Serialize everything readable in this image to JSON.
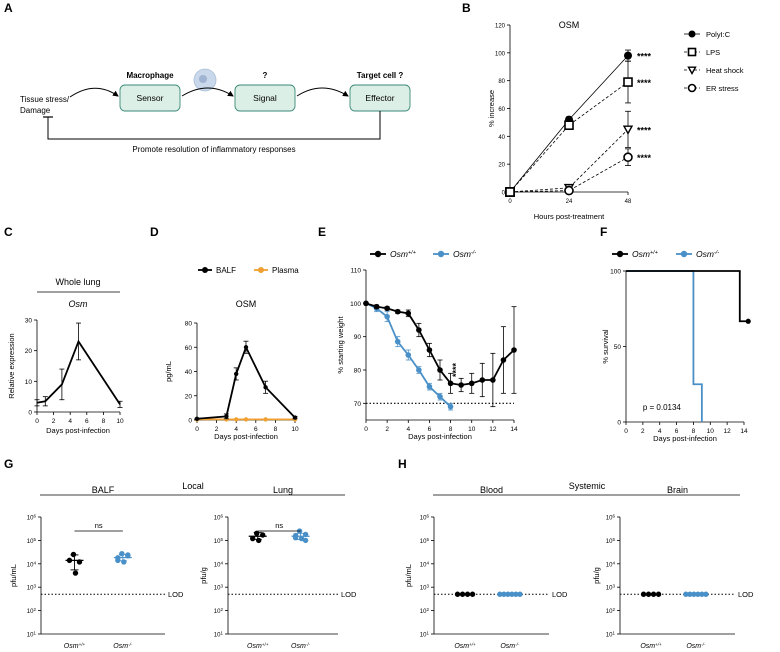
{
  "panels": {
    "A": {
      "letter": "A",
      "left_label": "Tissue stress/\nDamage",
      "boxes": [
        "Sensor",
        "Signal",
        "Effector"
      ],
      "headers": [
        "Macrophage",
        "?",
        "Target cell ?"
      ],
      "feedback": "Promote resolution of inflammatory responses",
      "colors": {
        "box_fill": "#dcefe6",
        "box_stroke": "#3b8a78",
        "cell_fill": "#c9d8ea"
      }
    },
    "B": {
      "letter": "B"
    },
    "C": {
      "letter": "C",
      "header": "Whole lung"
    },
    "D": {
      "letter": "D"
    },
    "E": {
      "letter": "E"
    },
    "F": {
      "letter": "F"
    },
    "G": {
      "letter": "G",
      "group": "Local"
    },
    "H": {
      "letter": "H",
      "group": "Systemic"
    }
  },
  "colors": {
    "wt": "#000000",
    "ko": "#4a90c8",
    "plasma": "#f0a030"
  },
  "chart_data": [
    {
      "id": "B",
      "type": "line",
      "title": "OSM",
      "xlabel": "Hours post-treatment",
      "ylabel": "% increase",
      "x": [
        0,
        24,
        48
      ],
      "xlim": [
        0,
        48
      ],
      "ylim": [
        0,
        120
      ],
      "xticks": [
        0,
        24,
        48
      ],
      "yticks": [
        0,
        20,
        40,
        60,
        80,
        100,
        120
      ],
      "series": [
        {
          "name": "PolyI:C",
          "values": [
            0,
            52,
            98
          ],
          "err": [
            0,
            2,
            4
          ],
          "marker": "circle-filled",
          "dash": ""
        },
        {
          "name": "LPS",
          "values": [
            0,
            48,
            79
          ],
          "err": [
            0,
            2,
            15
          ],
          "marker": "square-open",
          "dash": "3,2"
        },
        {
          "name": "Heat shock",
          "values": [
            0,
            3,
            45
          ],
          "err": [
            0,
            2,
            13
          ],
          "marker": "triangle-open",
          "dash": "3,2"
        },
        {
          "name": "ER stress",
          "values": [
            0,
            1,
            25
          ],
          "err": [
            0,
            1,
            6
          ],
          "marker": "circle-open",
          "dash": "3,2"
        }
      ],
      "annotations": [
        "****",
        "****",
        "****",
        "****"
      ]
    },
    {
      "id": "C",
      "type": "line",
      "title": "Osm",
      "xlabel": "Days post-infection",
      "ylabel": "Relative expression",
      "xlim": [
        0,
        10
      ],
      "ylim": [
        0,
        30
      ],
      "xticks": [
        0,
        2,
        4,
        6,
        8,
        10
      ],
      "yticks": [
        0,
        10,
        20,
        30
      ],
      "series": [
        {
          "name": "Osm",
          "x": [
            0,
            1,
            3,
            5,
            10
          ],
          "values": [
            3,
            3.5,
            9,
            23,
            2.5
          ],
          "err": [
            1,
            1.5,
            5,
            6,
            1
          ]
        }
      ]
    },
    {
      "id": "D",
      "type": "line",
      "title": "OSM",
      "xlabel": "Days post-infection",
      "ylabel": "pg/mL",
      "xlim": [
        0,
        10
      ],
      "ylim": [
        0,
        80
      ],
      "xticks": [
        0,
        2,
        4,
        6,
        8,
        10
      ],
      "yticks": [
        0,
        20,
        40,
        60,
        80
      ],
      "series": [
        {
          "name": "BALF",
          "x": [
            0,
            3,
            4,
            5,
            7,
            10
          ],
          "values": [
            1,
            3,
            38,
            60,
            27,
            2
          ],
          "err": [
            0.5,
            2,
            5,
            5,
            5,
            1
          ]
        },
        {
          "name": "Plasma",
          "x": [
            0,
            3,
            4,
            5,
            7,
            10
          ],
          "values": [
            0.5,
            0.5,
            0.5,
            0.5,
            0.5,
            0.5
          ],
          "err": [
            0,
            0,
            0,
            0,
            0,
            0
          ]
        }
      ]
    },
    {
      "id": "E",
      "type": "line",
      "xlabel": "Days post-infection",
      "ylabel": "% starting weight",
      "xlim": [
        0,
        14
      ],
      "ylim": [
        65,
        110
      ],
      "xticks": [
        0,
        2,
        4,
        6,
        8,
        10,
        12,
        14
      ],
      "yticks": [
        70,
        80,
        90,
        100,
        110
      ],
      "dotted_line_y": 70,
      "annotation": "****",
      "annotation_x": 8.5,
      "series": [
        {
          "name": "Osm",
          "sup": "+/+",
          "x": [
            0,
            1,
            2,
            3,
            4,
            5,
            6,
            7,
            8,
            9,
            10,
            11,
            12,
            13,
            14
          ],
          "values": [
            100,
            99,
            98.5,
            97.5,
            97,
            92,
            86,
            80,
            76,
            75.5,
            76,
            77,
            77,
            83,
            86
          ],
          "err": [
            0,
            0.5,
            0.5,
            0.5,
            1,
            2,
            2,
            3,
            3,
            2,
            3,
            5,
            8,
            10,
            13
          ]
        },
        {
          "name": "Osm",
          "sup": "-/-",
          "x": [
            0,
            1,
            2,
            3,
            4,
            5,
            6,
            7,
            8
          ],
          "values": [
            100,
            98.5,
            96,
            88.5,
            84.5,
            80,
            75,
            72,
            69
          ],
          "err": [
            0,
            1,
            1.5,
            1.5,
            1.5,
            1,
            1,
            1,
            1
          ]
        }
      ]
    },
    {
      "id": "F",
      "type": "line",
      "xlabel": "Days post-infection",
      "ylabel": "% survival",
      "xlim": [
        0,
        14
      ],
      "ylim": [
        0,
        100
      ],
      "xticks": [
        0,
        2,
        4,
        6,
        8,
        10,
        12,
        14
      ],
      "yticks": [
        0,
        50,
        100
      ],
      "pvalue": "p = 0.0134",
      "series": [
        {
          "name": "Osm",
          "sup": "+/+",
          "steps": [
            [
              0,
              100
            ],
            [
              13.5,
              100
            ],
            [
              13.5,
              66.7
            ],
            [
              14.5,
              66.7
            ]
          ],
          "end_dot": [
            14.5,
            66.7
          ]
        },
        {
          "name": "Osm",
          "sup": "-/-",
          "steps": [
            [
              0,
              100
            ],
            [
              8,
              100
            ],
            [
              8,
              25
            ],
            [
              9,
              25
            ],
            [
              9,
              0
            ]
          ]
        }
      ]
    },
    {
      "id": "G1",
      "type": "scatter",
      "title": "BALF",
      "ylabel": "pfu/mL",
      "lod": "LOD",
      "lod_value": 500,
      "ylim_log": [
        1,
        6
      ],
      "yticks": [
        "10",
        "10",
        "10",
        "10",
        "10",
        "10"
      ],
      "ytick_exp": [
        "1",
        "2",
        "3",
        "4",
        "5",
        "6"
      ],
      "ns_label": "ns",
      "groups": [
        {
          "name": "Osm",
          "sup": "+/+",
          "points": [
            25000,
            12000,
            14000,
            4000
          ],
          "mean": 14000,
          "err_lo": 5500,
          "err_hi": 24000
        },
        {
          "name": "Osm",
          "sup": "-/-",
          "points": [
            27000,
            24000,
            18000,
            12000,
            14000,
            22000
          ],
          "mean": 18500,
          "err_lo": 13500,
          "err_hi": 25000
        }
      ]
    },
    {
      "id": "G2",
      "type": "scatter",
      "title": "Lung",
      "ylabel": "pfu/g",
      "lod": "LOD",
      "lod_value": 500,
      "ylim_log": [
        1,
        6
      ],
      "yticks": [
        "10",
        "10",
        "10",
        "10",
        "10",
        "10"
      ],
      "ytick_exp": [
        "1",
        "2",
        "3",
        "4",
        "5",
        "6"
      ],
      "ns_label": "ns",
      "groups": [
        {
          "name": "Osm",
          "sup": "+/+",
          "points": [
            200000,
            170000,
            120000,
            100000
          ],
          "mean": 150000,
          "err_lo": 110000,
          "err_hi": 220000
        },
        {
          "name": "Osm",
          "sup": "-/-",
          "points": [
            250000,
            180000,
            130000,
            120000,
            160000,
            100000
          ],
          "mean": 150000,
          "err_lo": 110000,
          "err_hi": 200000
        }
      ]
    },
    {
      "id": "H1",
      "type": "scatter",
      "title": "Blood",
      "ylabel": "pfu/mL",
      "lod": "LOD",
      "lod_value": 500,
      "ylim_log": [
        1,
        6
      ],
      "yticks": [
        "10",
        "10",
        "10",
        "10",
        "10",
        "10"
      ],
      "ytick_exp": [
        "1",
        "2",
        "3",
        "4",
        "5",
        "6"
      ],
      "groups": [
        {
          "name": "Osm",
          "sup": "+/+",
          "points": [
            500,
            500,
            500,
            500
          ]
        },
        {
          "name": "Osm",
          "sup": "-/-",
          "points": [
            500,
            500,
            500,
            500,
            500,
            500
          ]
        }
      ]
    },
    {
      "id": "H2",
      "type": "scatter",
      "title": "Brain",
      "ylabel": "pfu/g",
      "lod": "LOD",
      "lod_value": 500,
      "ylim_log": [
        1,
        6
      ],
      "yticks": [
        "10",
        "10",
        "10",
        "10",
        "10",
        "10"
      ],
      "ytick_exp": [
        "1",
        "2",
        "3",
        "4",
        "5",
        "6"
      ],
      "groups": [
        {
          "name": "Osm",
          "sup": "+/+",
          "points": [
            500,
            500,
            500,
            500
          ]
        },
        {
          "name": "Osm",
          "sup": "-/-",
          "points": [
            500,
            500,
            500,
            500,
            500,
            500
          ]
        }
      ]
    }
  ]
}
